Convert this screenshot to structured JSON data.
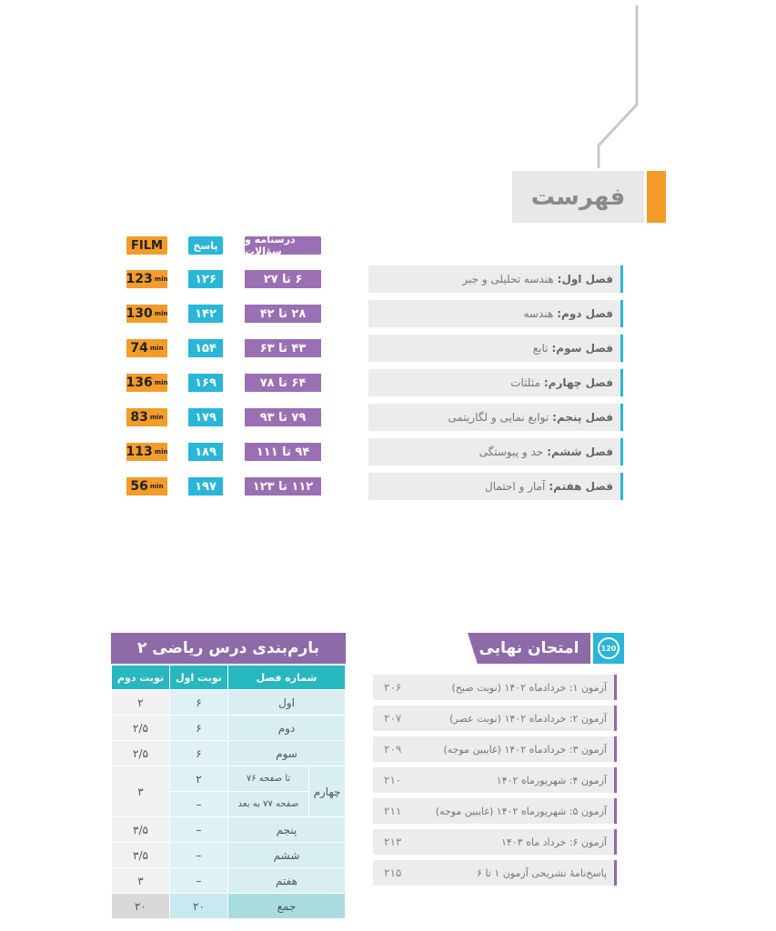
{
  "title": "فهرست",
  "headers": {
    "pages": "درسنامه و سؤالات",
    "answers": "پاسخ",
    "film": "FILM"
  },
  "chapters": [
    {
      "label": "فصل اول:",
      "topic": "هندسه تحلیلی و جبر",
      "pages": "۶ تا ۲۷",
      "answer": "۱۲۶",
      "film": "123",
      "unit": "min"
    },
    {
      "label": "فصل دوم:",
      "topic": "هندسه",
      "pages": "۲۸ تا ۴۲",
      "answer": "۱۴۲",
      "film": "130",
      "unit": "min"
    },
    {
      "label": "فصل سوم:",
      "topic": "تابع",
      "pages": "۴۳ تا ۶۳",
      "answer": "۱۵۴",
      "film": "74",
      "unit": "min"
    },
    {
      "label": "فصل چهارم:",
      "topic": "مثلثات",
      "pages": "۶۴ تا ۷۸",
      "answer": "۱۶۹",
      "film": "136",
      "unit": "min"
    },
    {
      "label": "فصل پنجم:",
      "topic": "توابع نمایی و لگاریتمی",
      "pages": "۷۹ تا ۹۳",
      "answer": "۱۷۹",
      "film": "83",
      "unit": "min"
    },
    {
      "label": "فصل ششم:",
      "topic": "حد و پیوستگی",
      "pages": "۹۴ تا ۱۱۱",
      "answer": "۱۸۹",
      "film": "113",
      "unit": "min"
    },
    {
      "label": "فصل هفتم:",
      "topic": "آمار و احتمال",
      "pages": "۱۱۲ تا ۱۲۳",
      "answer": "۱۹۷",
      "film": "56",
      "unit": "min"
    }
  ],
  "exam": {
    "title": "امتحان نهایی",
    "icon_text": "120",
    "items": [
      {
        "text": "آزمون ۱: خردادماه ۱۴۰۲ (نوبت صبح)",
        "page": "۲۰۶"
      },
      {
        "text": "آزمون ۲: خردادماه ۱۴۰۲ (نوبت عصر)",
        "page": "۲۰۷"
      },
      {
        "text": "آزمون ۳: خردادماه ۱۴۰۲ (غایبین موجه)",
        "page": "۲۰۹"
      },
      {
        "text": "آزمون ۴: شهریورماه ۱۴۰۲",
        "page": "۲۱۰"
      },
      {
        "text": "آزمون ۵: شهریورماه ۱۴۰۲ (غایبین موجه)",
        "page": "۲۱۱"
      },
      {
        "text": "آزمون ۶: خرداد ماه ۱۴۰۳",
        "page": "۲۱۳"
      },
      {
        "text": "پاسخ‌نامهٔ تشریحی آزمون ۱ تا ۶",
        "page": "۲۱۵"
      }
    ]
  },
  "score_table": {
    "title": "بارم‌بندی درس ریاضی ۲",
    "headers": {
      "chapter": "شماره فصل",
      "first": "نوبت اول",
      "second": "نوبت دوم"
    },
    "rows": [
      {
        "chapter": "اول",
        "first": "۶",
        "second": "۲"
      },
      {
        "chapter": "دوم",
        "first": "۶",
        "second": "۲/۵"
      },
      {
        "chapter": "سوم",
        "first": "۶",
        "second": "۲/۵"
      },
      {
        "chapter": "پنجم",
        "first": "–",
        "second": "۳/۵"
      },
      {
        "chapter": "ششم",
        "first": "–",
        "second": "۳/۵"
      },
      {
        "chapter": "هفتم",
        "first": "–",
        "second": "۳"
      }
    ],
    "fourth": {
      "chapter": "چهارم",
      "sub1": "تا صفحه ۷۶",
      "sub1_first": "۲",
      "sub2": "صفحه ۷۷ به بعد",
      "sub2_first": "–",
      "second": "۳"
    },
    "total": {
      "label": "جمع",
      "first": "۲۰",
      "second": "۲۰"
    }
  },
  "colors": {
    "purple": "#9b6fb3",
    "cyan": "#29b6d8",
    "orange": "#f39c2a",
    "teal": "#26b7c0"
  }
}
